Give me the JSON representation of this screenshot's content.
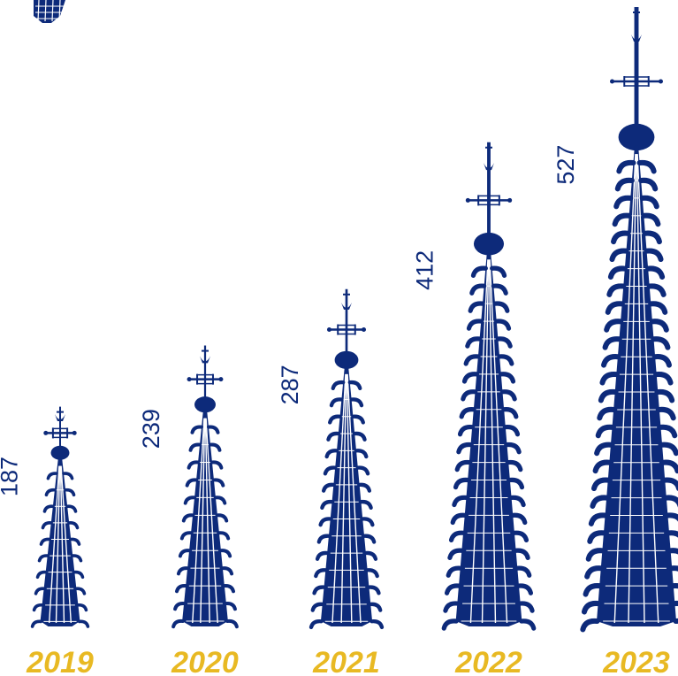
{
  "colors": {
    "spire": "#0d2a7a",
    "year_label": "#e8b923",
    "value_label": "#0d2a7a"
  },
  "chart_data": {
    "type": "bar",
    "mark": "spire-pictogram",
    "categories": [
      "2019",
      "2020",
      "2021",
      "2022",
      "2023"
    ],
    "values": [
      187,
      239,
      287,
      412,
      527
    ],
    "title": "",
    "xlabel": "",
    "ylabel": "",
    "grid": false,
    "legend": "none"
  }
}
